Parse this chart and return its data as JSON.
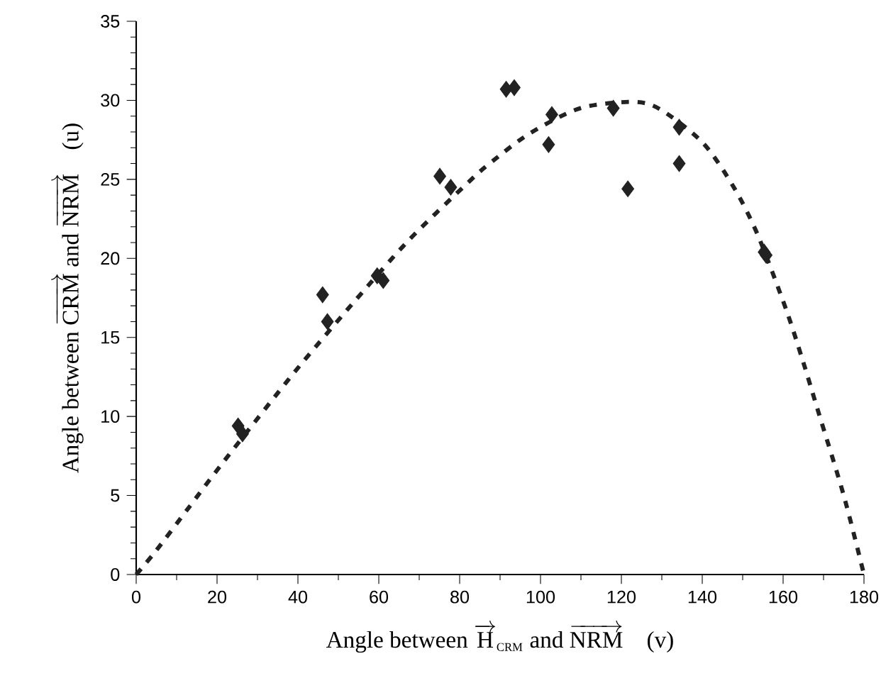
{
  "chart_data": {
    "type": "scatter",
    "xlabel": "\\text{Angle between }\\overrightarrow{\\mathrm{H}}_{\\scriptscriptstyle\\mathrm{CRM}}\\text{ and }\\overrightarrow{\\mathrm{NRM}}\\quad\\text{(v)}",
    "ylabel": "\\text{Angle between }\\overrightarrow{\\mathrm{CRM}}\\text{ and }\\overrightarrow{\\mathrm{NRM}}\\quad\\text{(u)}",
    "xlim": [
      0,
      180
    ],
    "ylim": [
      0,
      35
    ],
    "xticks": [
      0,
      20,
      40,
      60,
      80,
      100,
      120,
      140,
      160,
      180
    ],
    "yticks": [
      0,
      5,
      10,
      15,
      20,
      25,
      30,
      35
    ],
    "grid": false,
    "series": [
      {
        "marker": "diamond",
        "color": "#222222",
        "x": [
          25.2,
          26.3,
          46.1,
          47.3,
          59.6,
          61.1,
          75.1,
          77.8,
          91.5,
          93.5,
          102.8,
          102.0,
          118.0,
          121.6,
          134.3,
          134.3,
          155.3,
          155.8
        ],
        "values": [
          9.4,
          8.9,
          17.7,
          16.0,
          18.9,
          18.6,
          25.2,
          24.5,
          30.7,
          30.8,
          29.1,
          27.2,
          29.5,
          24.4,
          28.3,
          26.0,
          20.4,
          20.2
        ]
      },
      {
        "type": "line",
        "line_style": "dashed",
        "marker": "none",
        "color": "#222222",
        "x": [
          0,
          4.9,
          12.9,
          20.9,
          33.2,
          41.4,
          54.4,
          67.6,
          82.1,
          87.4,
          97.3,
          109.8,
          123.0,
          129.8,
          140.2,
          147.8,
          153.7,
          160.7,
          164.9,
          168.7,
          175,
          180
        ],
        "values": [
          0,
          1.5,
          4.2,
          6.9,
          10.9,
          13.5,
          17.4,
          21.2,
          24.8,
          26.0,
          27.9,
          29.5,
          29.9,
          29.4,
          27.3,
          24.5,
          21.5,
          16.8,
          13.5,
          10.3,
          5.0,
          0
        ]
      }
    ]
  }
}
